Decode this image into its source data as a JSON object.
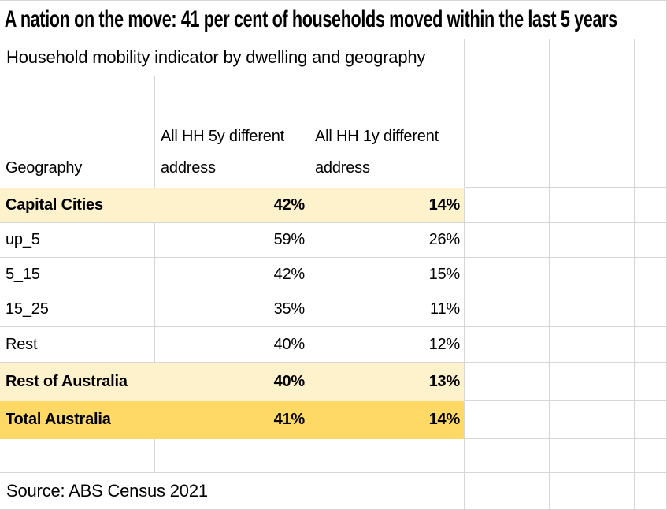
{
  "sheet": {
    "title": "A nation on the move: 41 per cent of households moved within the last 5 years",
    "subtitle": "Household mobility indicator by dwelling and geography",
    "header": {
      "geography": "Geography",
      "hh5y": "All HH 5y different address",
      "hh1y": "All HH 1y different address"
    },
    "rows": [
      {
        "geo": "Capital Cities",
        "hh5y": "42%",
        "hh1y": "14%",
        "emphasis": "highlight-light"
      },
      {
        "geo": "up_5",
        "hh5y": "59%",
        "hh1y": "26%",
        "emphasis": "none"
      },
      {
        "geo": "5_15",
        "hh5y": "42%",
        "hh1y": "15%",
        "emphasis": "none"
      },
      {
        "geo": "15_25",
        "hh5y": "35%",
        "hh1y": "11%",
        "emphasis": "none"
      },
      {
        "geo": "Rest",
        "hh5y": "40%",
        "hh1y": "12%",
        "emphasis": "none"
      },
      {
        "geo": "Rest of Australia",
        "hh5y": "40%",
        "hh1y": "13%",
        "emphasis": "highlight-light"
      },
      {
        "geo": "Total Australia",
        "hh5y": "41%",
        "hh1y": "14%",
        "emphasis": "highlight-gold"
      }
    ],
    "source": "Source: ABS Census 2021",
    "colors": {
      "highlight_light": "#FDF2CC",
      "highlight_gold": "#FFD965",
      "gridline": "#D6D6D6",
      "text": "#000000",
      "background": "#FFFFFF"
    }
  }
}
